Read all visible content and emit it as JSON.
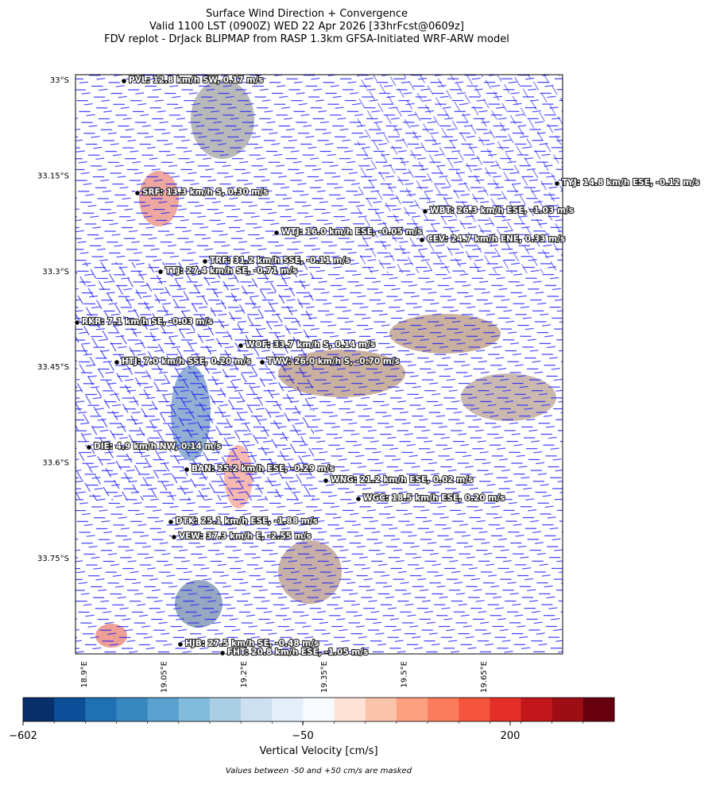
{
  "header": {
    "title_lines": [
      "Surface Wind Direction + Convergence",
      "Valid 1100 LST (0900Z) WED 22 Apr 2026 [33hrFcst@0609z]",
      "FDV replot - DrJack BLIPMAP from RASP 1.3km GFSA-Initiated WRF-ARW model"
    ]
  },
  "map": {
    "lat_ticks": [
      "33°S",
      "33.15°S",
      "33.3°S",
      "33.45°S",
      "33.6°S",
      "33.75°S"
    ],
    "lon_ticks": [
      "18.9°E",
      "19.05°E",
      "19.2°E",
      "19.35°E",
      "19.5°E",
      "19.65°E"
    ],
    "stations": [
      "PVL: 12.8 km/h SW, 0.17 m/s",
      "TYJ: 14.8 km/h ESE, -0.12 m/s",
      "SRF: 13.3 km/h S, 0.30 m/s",
      "WBT: 26.3 km/h ESE, -1.03 m/s",
      "WTJ: 16.0 km/h ESE, -0.05 m/s",
      "CEV: 24.7 km/h ENE, 0.33 m/s",
      "TRF: 31.2 km/h SSE, -0.11 m/s",
      "TTJ: 27.4 km/h SE, -0.71 m/s",
      "RKR: 7.1 km/h SE, -0.03 m/s",
      "WOF: 33.7 km/h S, 0.14 m/s",
      "HTJ: 7.0 km/h SSE, 0.20 m/s",
      "TWV: 26.0 km/h S, -0.70 m/s",
      "DIE: 4.9 km/h NW, 0.14 m/s",
      "BAN: 25.2 km/h ESE, -0.29 m/s",
      "WNG: 21.2 km/h ESE, 0.02 m/s",
      "WGC: 18.5 km/h ESE, 0.20 m/s",
      "DTK: 25.1 km/h ESE, -1.88 m/s",
      "VEW: 37.3 km/h E, -2.55 m/s",
      "HJB: 27.5 km/h SE, -0.48 m/s",
      "FHT: 20.8 km/h ESE, -1.05 m/s"
    ]
  },
  "colorbar": {
    "label": "Vertical Velocity [cm/s]",
    "tick_labels": [
      "−602",
      "−50",
      "200"
    ],
    "colors": [
      "#08306b",
      "#0a4f97",
      "#2070b4",
      "#3787c0",
      "#5aa2cf",
      "#82bbdb",
      "#aacfe5",
      "#cde0f1",
      "#e3eef9",
      "#f7fbff",
      "#fee2d5",
      "#fcc3ab",
      "#fca082",
      "#fb7c5c",
      "#f5553c",
      "#e32f27",
      "#c3161b",
      "#9e0d14",
      "#67000d"
    ]
  },
  "footnote": "Values between -50 and +50 cm/s are masked"
}
